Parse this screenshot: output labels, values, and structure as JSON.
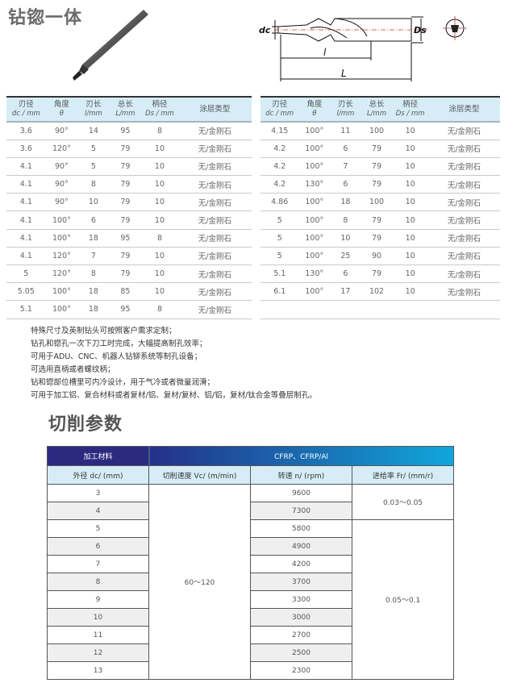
{
  "title": "钻锪一体",
  "drawing_labels": {
    "dc": "dc",
    "Ds": "Ds",
    "l": "l",
    "L": "L"
  },
  "spec_headers": [
    {
      "cn": "刃径",
      "en": "dc / mm"
    },
    {
      "cn": "角度",
      "en": "θ"
    },
    {
      "cn": "刃长",
      "en": "l/mm"
    },
    {
      "cn": "总长",
      "en": "L/mm"
    },
    {
      "cn": "柄径",
      "en": "Ds / mm"
    },
    {
      "cn": "涂层类型",
      "en": ""
    }
  ],
  "spec_left": [
    [
      "3.6",
      "90°",
      "14",
      "95",
      "8",
      "无/金刚石"
    ],
    [
      "3.6",
      "120°",
      "5",
      "79",
      "10",
      "无/金刚石"
    ],
    [
      "4.1",
      "90°",
      "5",
      "79",
      "10",
      "无/金刚石"
    ],
    [
      "4.1",
      "90°",
      "8",
      "79",
      "10",
      "无/金刚石"
    ],
    [
      "4.1",
      "90°",
      "10",
      "79",
      "10",
      "无/金刚石"
    ],
    [
      "4.1",
      "100°",
      "6",
      "79",
      "10",
      "无/金刚石"
    ],
    [
      "4.1",
      "100°",
      "18",
      "95",
      "8",
      "无/金刚石"
    ],
    [
      "4.1",
      "120°",
      "7",
      "79",
      "10",
      "无/金刚石"
    ],
    [
      "5",
      "120°",
      "8",
      "79",
      "10",
      "无/金刚石"
    ],
    [
      "5.05",
      "100°",
      "18",
      "85",
      "10",
      "无/金刚石"
    ],
    [
      "5.1",
      "100°",
      "18",
      "95",
      "8",
      "无/金刚石"
    ]
  ],
  "spec_right": [
    [
      "4.15",
      "100°",
      "11",
      "100",
      "10",
      "无/金刚石"
    ],
    [
      "4.2",
      "100°",
      "6",
      "79",
      "10",
      "无/金刚石"
    ],
    [
      "4.2",
      "100°",
      "7",
      "79",
      "10",
      "无/金刚石"
    ],
    [
      "4.2",
      "130°",
      "6",
      "79",
      "10",
      "无/金刚石"
    ],
    [
      "4.86",
      "100°",
      "18",
      "100",
      "10",
      "无/金刚石"
    ],
    [
      "5",
      "100°",
      "8",
      "79",
      "10",
      "无/金刚石"
    ],
    [
      "5",
      "100°",
      "10",
      "79",
      "10",
      "无/金刚石"
    ],
    [
      "5",
      "100°",
      "25",
      "90",
      "10",
      "无/金刚石"
    ],
    [
      "5.1",
      "130°",
      "6",
      "79",
      "10",
      "无/金刚石"
    ],
    [
      "6.1",
      "100°",
      "17",
      "102",
      "10",
      "无/金刚石"
    ],
    [
      "",
      "",
      "",
      "",
      "",
      ""
    ]
  ],
  "notes": [
    "特殊尺寸及英制钻头可按照客户需求定制；",
    "钻孔和锪孔一次下刀工时完成，大幅提高制孔效率；",
    "可用于ADU、CNC、机器人钻铆系统等制孔设备；",
    "可选用直柄或者螺纹柄；",
    "钻和锪部位槽里可内冷设计，用于气冷或者微量润滑；",
    "可用于加工铝、复合材料或者复材/铝、复材/复材、铝/铝，复材/钛合金等叠层制孔。"
  ],
  "cutting": {
    "title": "切削参数",
    "material_label": "加工材料",
    "material": "CFRP、CFRP/Al",
    "headers": [
      "外径 dc/ (mm)",
      "切削速度 Vc/ (m/min)",
      "转速 n/ (rpm)",
      "进给率 Fr/ (mm/r)"
    ],
    "vc": "60～120",
    "rows": [
      {
        "dc": "3",
        "n": "9600"
      },
      {
        "dc": "4",
        "n": "7300"
      },
      {
        "dc": "5",
        "n": "5800"
      },
      {
        "dc": "6",
        "n": "4900"
      },
      {
        "dc": "7",
        "n": "4200"
      },
      {
        "dc": "8",
        "n": "3700"
      },
      {
        "dc": "9",
        "n": "3300"
      },
      {
        "dc": "10",
        "n": "3000"
      },
      {
        "dc": "11",
        "n": "2700"
      },
      {
        "dc": "12",
        "n": "2500"
      },
      {
        "dc": "13",
        "n": "2300"
      }
    ],
    "fr": [
      "0.03～0.05",
      "0.05～0.1"
    ]
  },
  "colors": {
    "header_navy": "#2c2a80",
    "header_cyan": "#10a6dc",
    "subheader": "#d6edf7"
  }
}
